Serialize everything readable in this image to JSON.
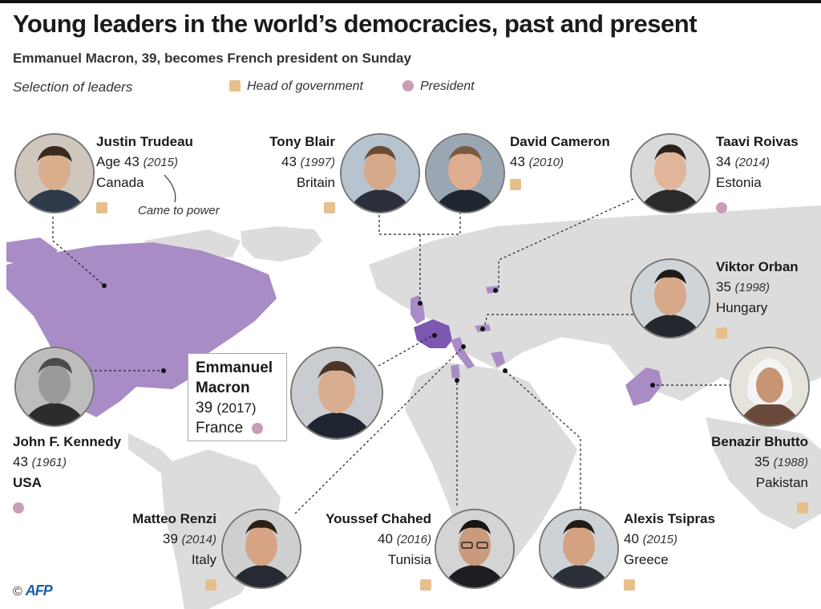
{
  "header": {
    "title": "Young leaders in the world’s democracies, past and present",
    "subtitle": "Emmanuel Macron, 39, becomes French president on Sunday"
  },
  "legend": {
    "selection": "Selection of leaders",
    "head_of_government": "Head of government",
    "president": "President"
  },
  "colors": {
    "map_land": "#dcdcdc",
    "highlight": "#a98cc6",
    "france": "#7e57b0",
    "head_of_government": "#e6c08c",
    "president": "#c89db5"
  },
  "annotation": {
    "came_to_power": "Came to power"
  },
  "leaders": {
    "trudeau": {
      "name": "Justin Trudeau",
      "age": "Age 43",
      "year": "(2015)",
      "country": "Canada",
      "role": "head_of_government"
    },
    "blair": {
      "name": "Tony Blair",
      "age": "43",
      "year": "(1997)",
      "country": "Britain",
      "role": "head_of_government"
    },
    "cameron": {
      "name": "David Cameron",
      "age": "43",
      "year": "(2010)",
      "country": "",
      "role": "head_of_government"
    },
    "roivas": {
      "name": "Taavi Roivas",
      "age": "34",
      "year": "(2014)",
      "country": "Estonia",
      "role": "president"
    },
    "orban": {
      "name": "Viktor Orban",
      "age": "35",
      "year": "(1998)",
      "country": "Hungary",
      "role": "head_of_government"
    },
    "kennedy": {
      "name": "John F. Kennedy",
      "age": "43",
      "year": "(1961)",
      "country": "USA",
      "role": "president"
    },
    "macron": {
      "name1": "Emmanuel",
      "name2": "Macron",
      "age": "39",
      "year": "(2017)",
      "country": "France",
      "role": "president"
    },
    "bhutto": {
      "name": "Benazir Bhutto",
      "age": "35",
      "year": "(1988)",
      "country": "Pakistan",
      "role": "head_of_government"
    },
    "renzi": {
      "name": "Matteo Renzi",
      "age": "39",
      "year": "(2014)",
      "country": "Italy",
      "role": "head_of_government"
    },
    "chahed": {
      "name": "Youssef Chahed",
      "age": "40",
      "year": "(2016)",
      "country": "Tunisia",
      "role": "head_of_government"
    },
    "tsipras": {
      "name": "Alexis Tsipras",
      "age": "40",
      "year": "(2015)",
      "country": "Greece",
      "role": "head_of_government"
    }
  },
  "footer": {
    "copyright": "©",
    "agency": "AFP"
  }
}
